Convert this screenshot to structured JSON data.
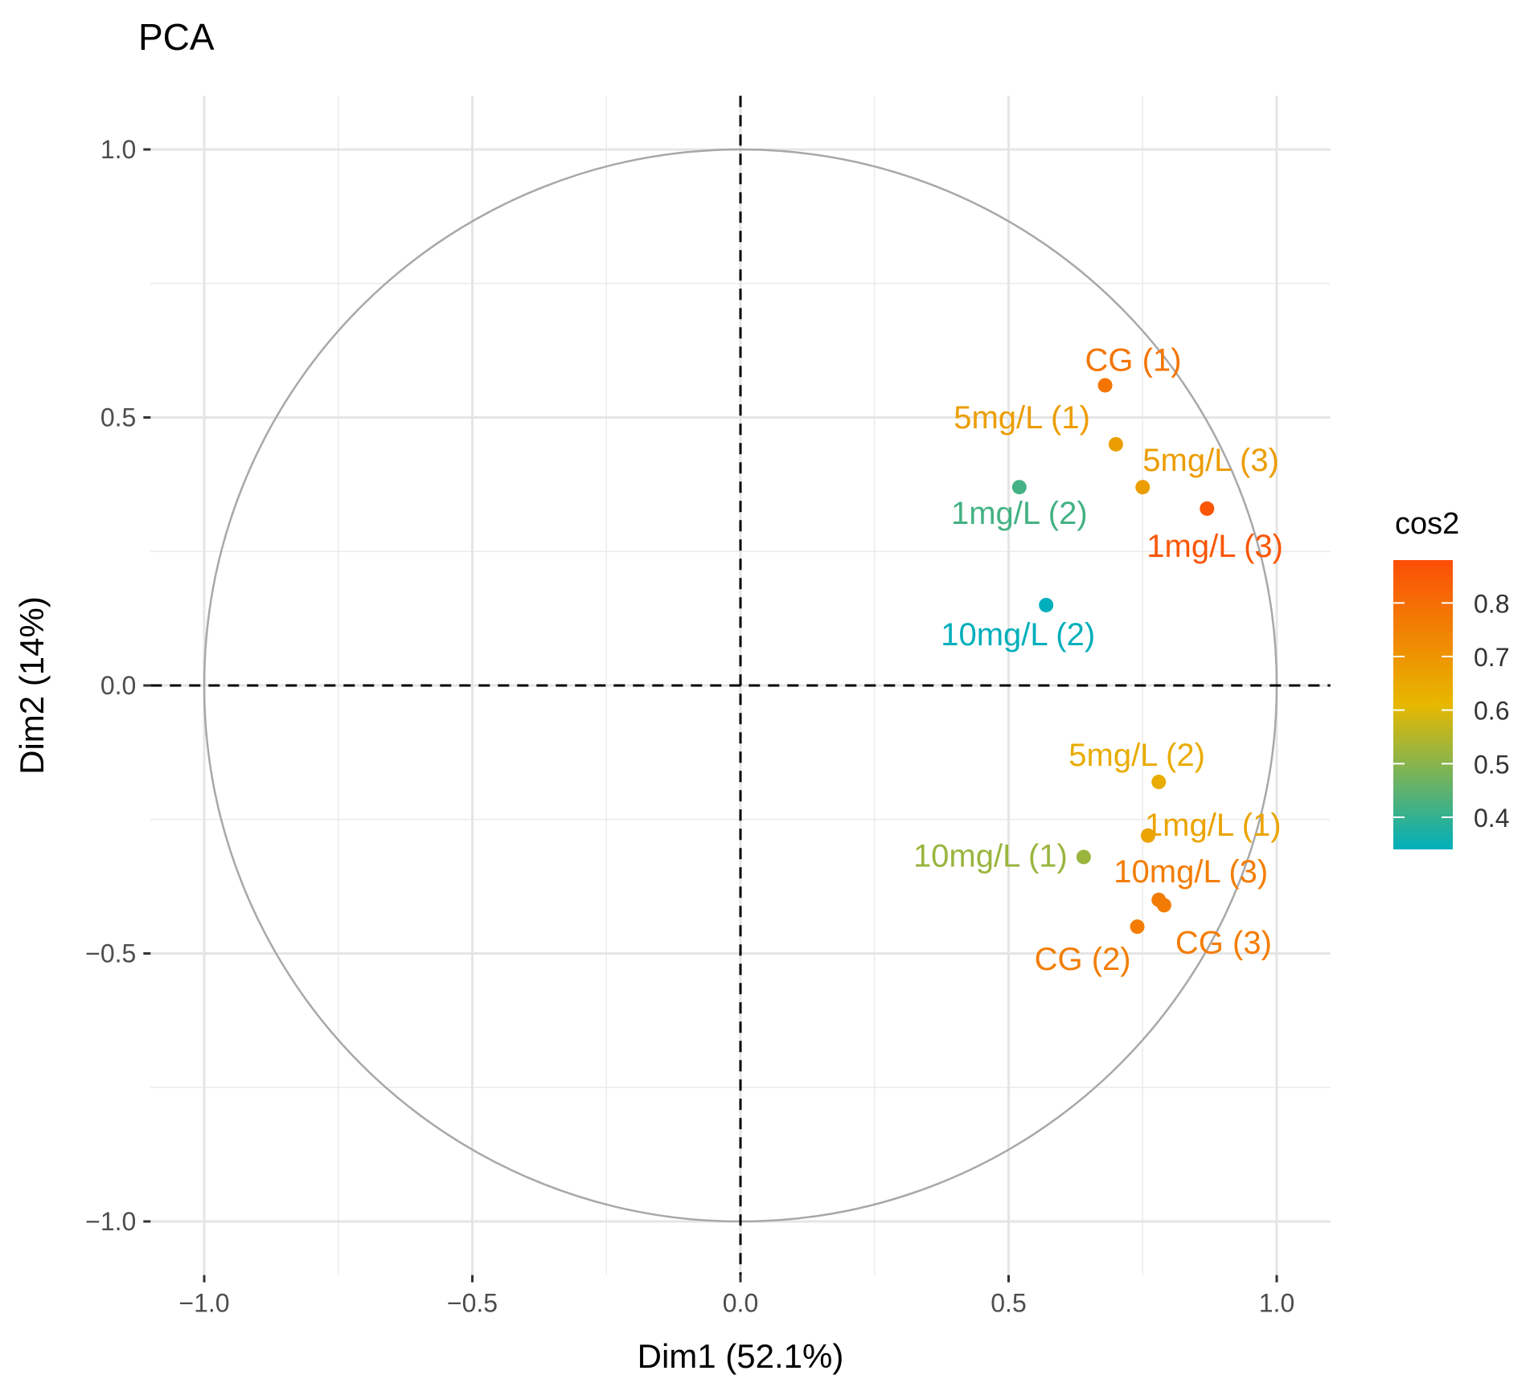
{
  "chart_data": {
    "type": "scatter",
    "title": "PCA",
    "xlabel": "Dim1 (52.1%)",
    "ylabel": "Dim2 (14%)",
    "xlim": [
      -1.1,
      1.1
    ],
    "ylim": [
      -1.1,
      1.1
    ],
    "xticks": [
      -1.0,
      -0.5,
      0.0,
      0.5,
      1.0
    ],
    "yticks": [
      -1.0,
      -0.5,
      0.0,
      0.5,
      1.0
    ],
    "xtick_labels": [
      "−1.0",
      "−0.5",
      "0.0",
      "0.5",
      "1.0"
    ],
    "ytick_labels": [
      "−1.0",
      "−0.5",
      "0.0",
      "0.5",
      "1.0"
    ],
    "grid": true,
    "unit_circle": true,
    "reference_lines": {
      "x": 0,
      "y": 0,
      "style": "dashed"
    },
    "points": [
      {
        "label": "CG (1)",
        "x": 0.68,
        "y": 0.56,
        "cos2": 0.78
      },
      {
        "label": "5mg/L (1)",
        "x": 0.7,
        "y": 0.45,
        "cos2": 0.68
      },
      {
        "label": "5mg/L (3)",
        "x": 0.75,
        "y": 0.37,
        "cos2": 0.68
      },
      {
        "label": "1mg/L (2)",
        "x": 0.52,
        "y": 0.37,
        "cos2": 0.42
      },
      {
        "label": "1mg/L (3)",
        "x": 0.87,
        "y": 0.33,
        "cos2": 0.86
      },
      {
        "label": "10mg/L (2)",
        "x": 0.57,
        "y": 0.15,
        "cos2": 0.34
      },
      {
        "label": "5mg/L (2)",
        "x": 0.78,
        "y": -0.18,
        "cos2": 0.64
      },
      {
        "label": "1mg/L (1)",
        "x": 0.76,
        "y": -0.28,
        "cos2": 0.66
      },
      {
        "label": "10mg/L (1)",
        "x": 0.64,
        "y": -0.32,
        "cos2": 0.52
      },
      {
        "label": "10mg/L (3)",
        "x": 0.78,
        "y": -0.4,
        "cos2": 0.76
      },
      {
        "label": "CG (3)",
        "x": 0.79,
        "y": -0.41,
        "cos2": 0.76
      },
      {
        "label": "CG (2)",
        "x": 0.74,
        "y": -0.45,
        "cos2": 0.76
      }
    ],
    "legend": {
      "title": "cos2",
      "placement": "right",
      "range": [
        0.34,
        0.88
      ],
      "ticks": [
        0.4,
        0.5,
        0.6,
        0.7,
        0.8
      ],
      "tick_labels": [
        "0.4",
        "0.5",
        "0.6",
        "0.7",
        "0.8"
      ],
      "gradient": [
        "#00AFBB",
        "#E7B800",
        "#FC4E07"
      ]
    }
  }
}
